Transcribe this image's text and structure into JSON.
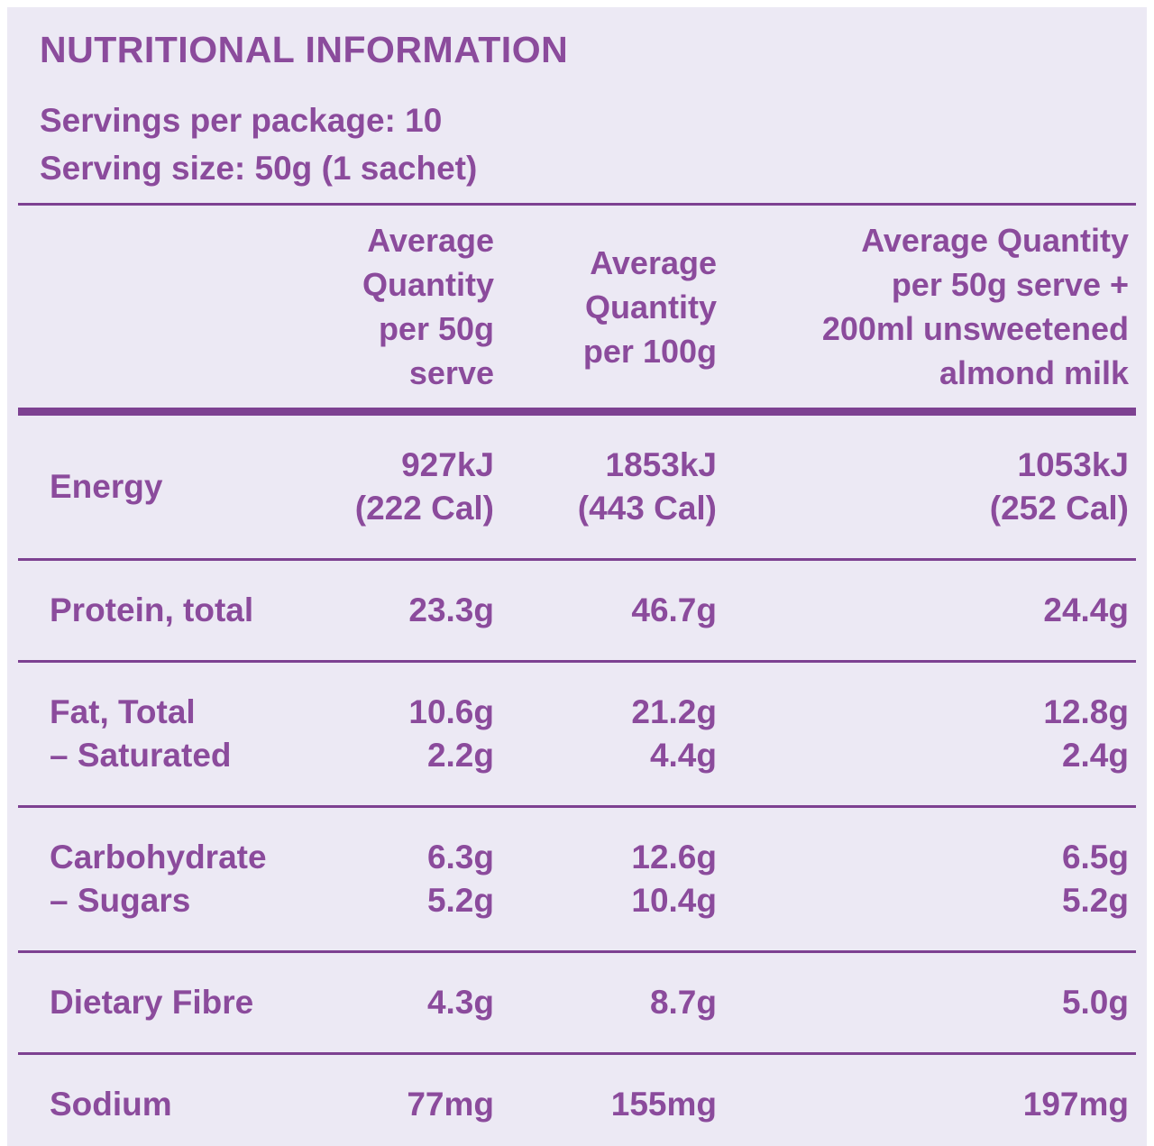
{
  "colors": {
    "background": "#ECE9F4",
    "text": "#8B4B9C",
    "divider": "#7D4191",
    "page_border": "#FFFFFF"
  },
  "panel": {
    "title": "NUTRITIONAL INFORMATION",
    "servings_per_package": "Servings per package: 10",
    "serving_size": "Serving size: 50g (1 sachet)",
    "columns": {
      "c50": [
        "Average",
        "Quantity",
        "per 50g",
        "serve"
      ],
      "c100": [
        "Average",
        "Quantity",
        "per 100g"
      ],
      "calm": [
        "Average Quantity",
        "per 50g serve +",
        "200ml unsweetened",
        "almond milk"
      ]
    },
    "rows": [
      {
        "key": "energy",
        "label": [
          [
            {
              "t": "Energy",
              "b": false
            }
          ]
        ],
        "c50": [
          [
            {
              "t": "927kJ",
              "b": false
            }
          ],
          [
            {
              "t": "(222 ",
              "b": false
            },
            {
              "t": "Cal)",
              "b": true
            }
          ]
        ],
        "c100": [
          [
            {
              "t": "1853kJ",
              "b": false
            }
          ],
          [
            {
              "t": "(443 Cal)",
              "b": false
            }
          ]
        ],
        "calm": [
          [
            {
              "t": "1053kJ",
              "b": false
            }
          ],
          [
            {
              "t": "(252 Cal)",
              "b": false
            }
          ]
        ]
      },
      {
        "key": "protein-total",
        "label": [
          [
            {
              "t": "Protein, total",
              "b": false
            }
          ]
        ],
        "c50": [
          [
            {
              "t": "23.3g",
              "b": false
            }
          ]
        ],
        "c100": [
          [
            {
              "t": "46.7g",
              "b": false
            }
          ]
        ],
        "calm": [
          [
            {
              "t": "24.4g",
              "b": false
            }
          ]
        ]
      },
      {
        "key": "fat-total",
        "label": [
          [
            {
              "t": "Fat, Total",
              "b": false
            }
          ],
          [
            {
              "t": "– Saturated",
              "b": false
            }
          ]
        ],
        "c50": [
          [
            {
              "t": "10.6g",
              "b": false
            }
          ],
          [
            {
              "t": "2.2g",
              "b": false
            }
          ]
        ],
        "c100": [
          [
            {
              "t": "21.2g",
              "b": false
            }
          ],
          [
            {
              "t": "4.4g",
              "b": true
            }
          ]
        ],
        "calm": [
          [
            {
              "t": "12.8g",
              "b": false
            }
          ],
          [
            {
              "t": "2.4g",
              "b": false
            }
          ]
        ]
      },
      {
        "key": "carbohydrate",
        "label": [
          [
            {
              "t": "Carbohydrate",
              "b": false
            }
          ],
          [
            {
              "t": "– Sugars",
              "b": false
            }
          ]
        ],
        "c50": [
          [
            {
              "t": "6.3g",
              "b": false
            }
          ],
          [
            {
              "t": "5.2g",
              "b": false
            }
          ]
        ],
        "c100": [
          [
            {
              "t": "12.6g",
              "b": false
            }
          ],
          [
            {
              "t": "10.4g",
              "b": false
            }
          ]
        ],
        "calm": [
          [
            {
              "t": "6.5g",
              "b": false
            }
          ],
          [
            {
              "t": "5.2g",
              "b": true
            }
          ]
        ]
      },
      {
        "key": "dietary-fibre",
        "label": [
          [
            {
              "t": "Dietary Fibre",
              "b": false
            }
          ]
        ],
        "c50": [
          [
            {
              "t": "4.3g",
              "b": false
            }
          ]
        ],
        "c100": [
          [
            {
              "t": "8.7g",
              "b": false
            }
          ]
        ],
        "calm": [
          [
            {
              "t": "5.0g",
              "b": false
            }
          ]
        ]
      },
      {
        "key": "sodium",
        "label": [
          [
            {
              "t": "Sodium",
              "b": false
            }
          ]
        ],
        "c50": [
          [
            {
              "t": "77mg",
              "b": false
            }
          ]
        ],
        "c100": [
          [
            {
              "t": "155mg",
              "b": false
            }
          ]
        ],
        "calm": [
          [
            {
              "t": "197mg",
              "b": false
            }
          ]
        ]
      }
    ]
  }
}
